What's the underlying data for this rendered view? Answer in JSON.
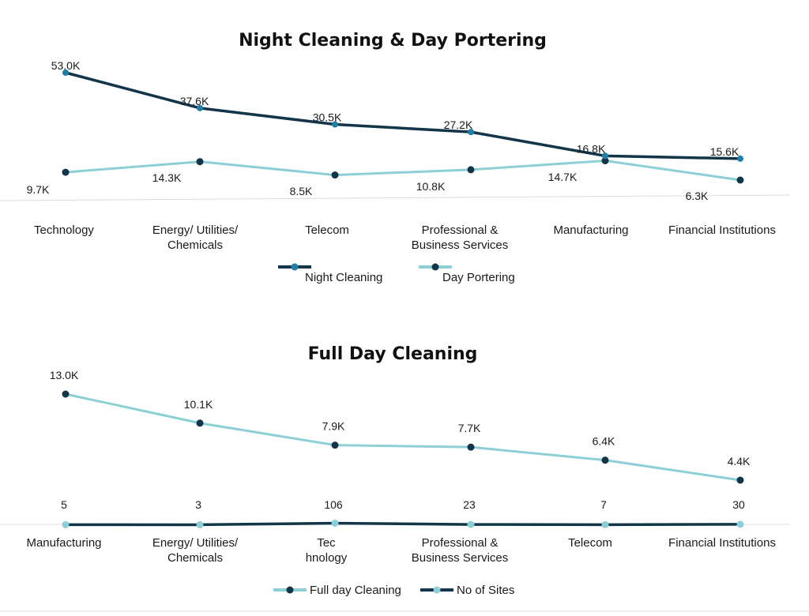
{
  "colors": {
    "dark": "#12354a",
    "light": "#8ccfd6",
    "dark_marker": "#1f7fa6",
    "axis": "#dcdcdc"
  },
  "chart_data": [
    {
      "type": "line",
      "title": "Night Cleaning & Day Portering",
      "categories": [
        "Technology",
        "Energy/ Utilities/ Chemicals",
        "Telecom",
        "Professional & Business Services",
        "Manufacturing",
        "Financial Institutions"
      ],
      "category_lines": [
        [
          "Technology"
        ],
        [
          "Energy/ Utilities/",
          "Chemicals"
        ],
        [
          "Telecom"
        ],
        [
          "Professional &",
          "Business Services"
        ],
        [
          "Manufacturing"
        ],
        [
          "Financial Institutions"
        ]
      ],
      "series": [
        {
          "name": "Night Cleaning",
          "values": [
            53.0,
            37.6,
            30.5,
            27.2,
            16.8,
            15.6
          ],
          "labels": [
            "53.0K",
            "37.6K",
            "30.5K",
            "27.2K",
            "16.8K",
            "15.6K"
          ]
        },
        {
          "name": "Day Portering",
          "values": [
            9.7,
            14.3,
            8.5,
            10.8,
            14.7,
            6.3
          ],
          "labels": [
            "9.7K",
            "14.3K",
            "8.5K",
            "10.8K",
            "14.7K",
            "6.3K"
          ]
        }
      ],
      "unit": "K",
      "legend": "bottom"
    },
    {
      "type": "line",
      "title": "Full Day Cleaning",
      "categories": [
        "Manufacturing",
        "Energy/ Utilities/ Chemicals",
        "Tec hnology",
        "Professional & Business Services",
        "Telecom",
        "Financial Institutions"
      ],
      "category_lines": [
        [
          "Manufacturing"
        ],
        [
          "Energy/ Utilities/",
          "Chemicals"
        ],
        [
          "Tec",
          "hnology"
        ],
        [
          "Professional &",
          "Business Services"
        ],
        [
          "Telecom"
        ],
        [
          "Financial Institutions"
        ]
      ],
      "series": [
        {
          "name": "Full day Cleaning",
          "values": [
            13.0,
            10.1,
            7.9,
            7.7,
            6.4,
            4.4
          ],
          "labels": [
            "13.0K",
            "10.1K",
            "7.9K",
            "7.7K",
            "6.4K",
            "4.4K"
          ]
        },
        {
          "name": "No of Sites",
          "values": [
            5,
            3,
            106,
            23,
            7,
            30
          ],
          "labels": [
            "5",
            "3",
            "106",
            "23",
            "7",
            "30"
          ]
        }
      ],
      "legend": "bottom"
    }
  ]
}
